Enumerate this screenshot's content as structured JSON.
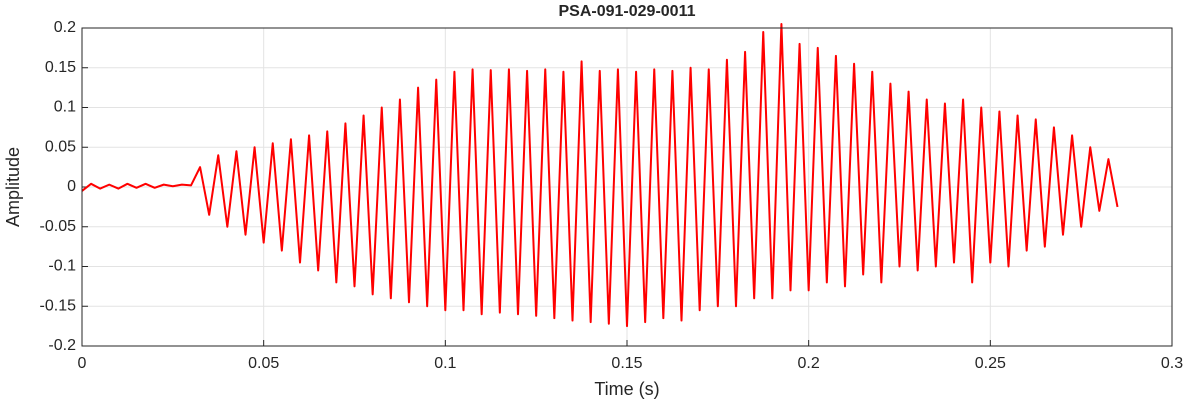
{
  "chart_data": {
    "type": "line",
    "title": "PSA-091-029-0011",
    "xlabel": "Time (s)",
    "ylabel": "Amplitude",
    "color": "#ff0000",
    "grid": true,
    "x": [
      0,
      0.0025,
      0.005,
      0.0075,
      0.01,
      0.0125,
      0.015,
      0.0175,
      0.02,
      0.0225,
      0.025,
      0.0275,
      0.03,
      0.0325,
      0.035,
      0.0375,
      0.04,
      0.0425,
      0.045,
      0.0475,
      0.05,
      0.0525,
      0.055,
      0.0575,
      0.06,
      0.0625,
      0.065,
      0.0675,
      0.07,
      0.0725,
      0.075,
      0.0775,
      0.08,
      0.0825,
      0.085,
      0.0875,
      0.09,
      0.0925,
      0.095,
      0.0975,
      0.1,
      0.1025,
      0.105,
      0.1075,
      0.11,
      0.1125,
      0.115,
      0.1175,
      0.12,
      0.1225,
      0.125,
      0.1275,
      0.13,
      0.1325,
      0.135,
      0.1375,
      0.14,
      0.1425,
      0.145,
      0.1475,
      0.15,
      0.1525,
      0.155,
      0.1575,
      0.16,
      0.1625,
      0.165,
      0.1675,
      0.17,
      0.1725,
      0.175,
      0.1775,
      0.18,
      0.1825,
      0.185,
      0.1875,
      0.19,
      0.1925,
      0.195,
      0.1975,
      0.2,
      0.2025,
      0.205,
      0.2075,
      0.21,
      0.2125,
      0.215,
      0.2175,
      0.22,
      0.2225,
      0.225,
      0.2275,
      0.23,
      0.2325,
      0.235,
      0.2375,
      0.24,
      0.2425,
      0.245,
      0.2475,
      0.25,
      0.2525,
      0.255,
      0.2575,
      0.26,
      0.2625,
      0.265,
      0.2675,
      0.27,
      0.2725,
      0.275,
      0.2775,
      0.28,
      0.2825,
      0.285
    ],
    "values": [
      -0.005,
      0.004,
      -0.002,
      0.003,
      -0.002,
      0.004,
      -0.001,
      0.004,
      -0.001,
      0.003,
      0.001,
      0.003,
      0.002,
      0.025,
      -0.035,
      0.04,
      -0.05,
      0.045,
      -0.06,
      0.05,
      -0.07,
      0.055,
      -0.08,
      0.06,
      -0.095,
      0.065,
      -0.105,
      0.07,
      -0.12,
      0.08,
      -0.125,
      0.09,
      -0.135,
      0.1,
      -0.14,
      0.11,
      -0.145,
      0.125,
      -0.15,
      0.135,
      -0.155,
      0.145,
      -0.155,
      0.148,
      -0.16,
      0.147,
      -0.158,
      0.148,
      -0.16,
      0.146,
      -0.162,
      0.148,
      -0.165,
      0.145,
      -0.168,
      0.158,
      -0.17,
      0.146,
      -0.172,
      0.148,
      -0.175,
      0.145,
      -0.17,
      0.148,
      -0.165,
      0.146,
      -0.168,
      0.15,
      -0.155,
      0.148,
      -0.15,
      0.16,
      -0.15,
      0.17,
      -0.14,
      0.195,
      -0.14,
      0.205,
      -0.13,
      0.18,
      -0.13,
      0.175,
      -0.12,
      0.165,
      -0.125,
      0.155,
      -0.11,
      0.145,
      -0.12,
      0.13,
      -0.1,
      0.12,
      -0.105,
      0.11,
      -0.1,
      0.105,
      -0.095,
      0.11,
      -0.12,
      0.1,
      -0.095,
      0.095,
      -0.1,
      0.09,
      -0.08,
      0.085,
      -0.075,
      0.075,
      -0.06,
      0.065,
      -0.05,
      0.05,
      -0.03,
      0.035,
      -0.025
    ],
    "xlim": [
      0,
      0.3
    ],
    "xticks": [
      0,
      0.05,
      0.1,
      0.15,
      0.2,
      0.25,
      0.3
    ],
    "ylim": [
      -0.2,
      0.2
    ],
    "yticks": [
      -0.2,
      -0.15,
      -0.1,
      -0.05,
      0,
      0.05,
      0.1,
      0.15,
      0.2
    ]
  }
}
